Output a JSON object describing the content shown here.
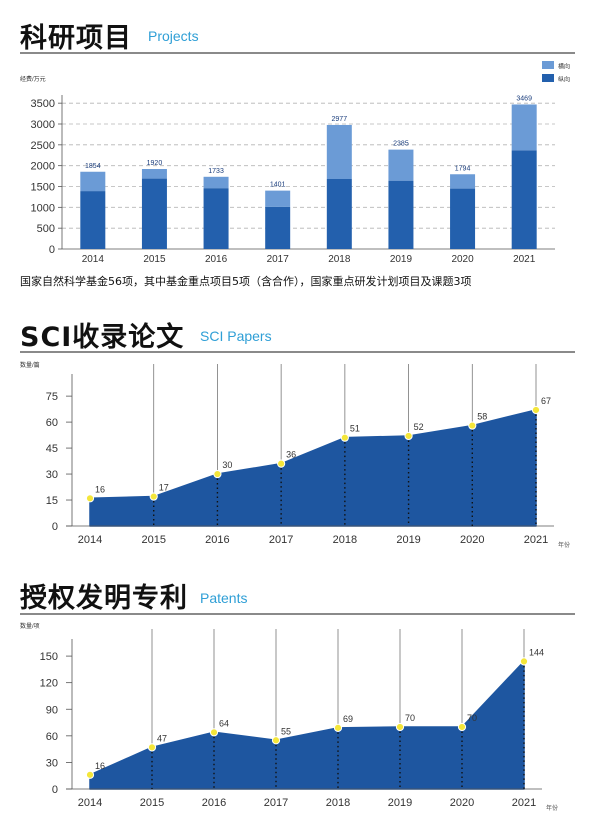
{
  "sections": {
    "funding": {
      "title": "科研项目",
      "subtitle": "Projects"
    },
    "papers": {
      "title": "SCI收录论文",
      "subtitle": "SCI Papers"
    },
    "patents": {
      "title": "授权发明专利",
      "subtitle": "Patents"
    }
  },
  "funding_note": "国家自然科学基金56项，其中基金重点项目5项（含合作），国家重点研发计划项目及课题3项",
  "chart_data": [
    {
      "type": "bar",
      "stacked": true,
      "ylabel": "经费/万元",
      "xlabel": "",
      "categories": [
        "2014",
        "2015",
        "2016",
        "2017",
        "2018",
        "2019",
        "2020",
        "2021"
      ],
      "series": [
        {
          "name": "纵向",
          "color": "#2360ad",
          "values": [
            1390,
            1690,
            1460,
            1010,
            1680,
            1640,
            1450,
            2370
          ]
        },
        {
          "name": "横向",
          "color": "#6b9bd6",
          "values": [
            464,
            230,
            273,
            391,
            1297,
            745,
            344,
            1099
          ]
        }
      ],
      "totals": [
        1854,
        1920,
        1733,
        1401,
        2977,
        2385,
        1794,
        3469
      ],
      "yticks": [
        0,
        500,
        1000,
        1500,
        2000,
        2500,
        3000,
        3500
      ],
      "ylim": [
        0,
        3600
      ],
      "grid": true,
      "legend": "top-right"
    },
    {
      "type": "area",
      "ylabel": "数量/篇",
      "xlabel": "年份",
      "categories": [
        "2014",
        "2015",
        "2016",
        "2017",
        "2018",
        "2019",
        "2020",
        "2021"
      ],
      "values": [
        16,
        17,
        30,
        36,
        51,
        52,
        58,
        67
      ],
      "yticks": [
        0,
        15,
        30,
        45,
        60,
        75
      ],
      "ylim": [
        0,
        82
      ],
      "color": "#1e56a0",
      "grid": false
    },
    {
      "type": "area",
      "ylabel": "数量/项",
      "xlabel": "年份",
      "categories": [
        "2014",
        "2015",
        "2016",
        "2017",
        "2018",
        "2019",
        "2020",
        "2021"
      ],
      "values": [
        16,
        47,
        64,
        55,
        69,
        70,
        70,
        144
      ],
      "yticks": [
        0,
        30,
        60,
        90,
        120,
        150
      ],
      "ylim": [
        0,
        158
      ],
      "color": "#1e56a0",
      "grid": false
    }
  ]
}
